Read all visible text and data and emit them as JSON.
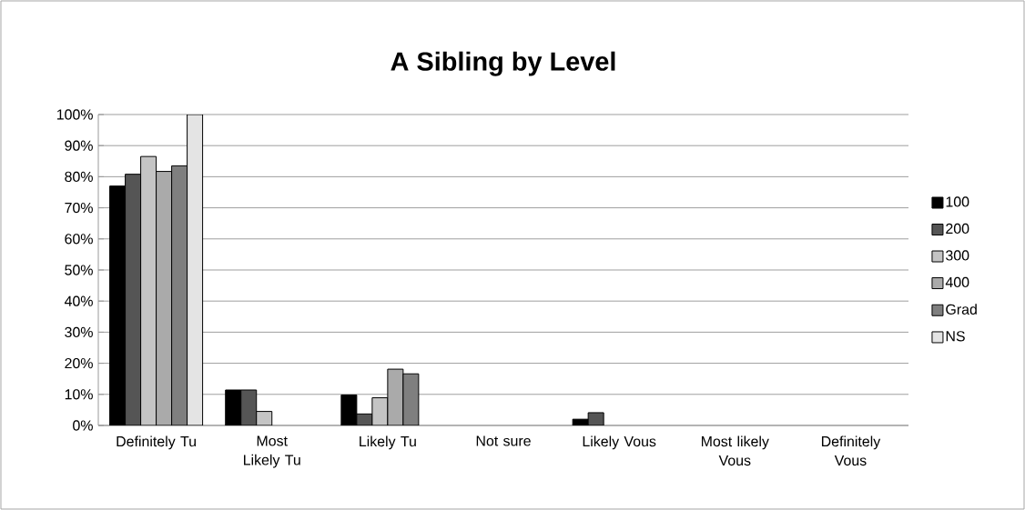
{
  "chart_data": {
    "type": "bar",
    "title": "A Sibling by Level",
    "categories": [
      "Definitely Tu",
      "Most Likely Tu",
      "Likely Tu",
      "Not sure",
      "Likely Vous",
      "Most likely Vous",
      "Definitely Vous"
    ],
    "series": [
      {
        "name": "100",
        "color": "#000000",
        "values": [
          77,
          11.4,
          9.8,
          null,
          2.0,
          null,
          null
        ]
      },
      {
        "name": "200",
        "color": "#555555",
        "values": [
          80.8,
          11.4,
          3.7,
          null,
          4.1,
          null,
          null
        ]
      },
      {
        "name": "300",
        "color": "#c4c4c4",
        "values": [
          86.5,
          4.5,
          8.9,
          null,
          null,
          null,
          null
        ]
      },
      {
        "name": "400",
        "color": "#aaaaaa",
        "values": [
          81.7,
          null,
          18.1,
          null,
          null,
          null,
          null
        ]
      },
      {
        "name": "Grad",
        "color": "#7f7f7f",
        "values": [
          83.5,
          null,
          16.6,
          null,
          null,
          null,
          null
        ]
      },
      {
        "name": "NS",
        "color": "#e4e4e4",
        "values": [
          100,
          null,
          null,
          null,
          null,
          null,
          null
        ]
      }
    ],
    "ylim": [
      0,
      100
    ],
    "yticks": [
      {
        "value": 0,
        "label": "0%"
      },
      {
        "value": 10,
        "label": "10%"
      },
      {
        "value": 20,
        "label": "20%"
      },
      {
        "value": 30,
        "label": "30%"
      },
      {
        "value": 40,
        "label": "40%"
      },
      {
        "value": 50,
        "label": "50%"
      },
      {
        "value": 60,
        "label": "60%"
      },
      {
        "value": 70,
        "label": "70%"
      },
      {
        "value": 80,
        "label": "80%"
      },
      {
        "value": 90,
        "label": "90%"
      },
      {
        "value": 100,
        "label": "100%"
      }
    ],
    "grid": "y",
    "legend": "right"
  }
}
